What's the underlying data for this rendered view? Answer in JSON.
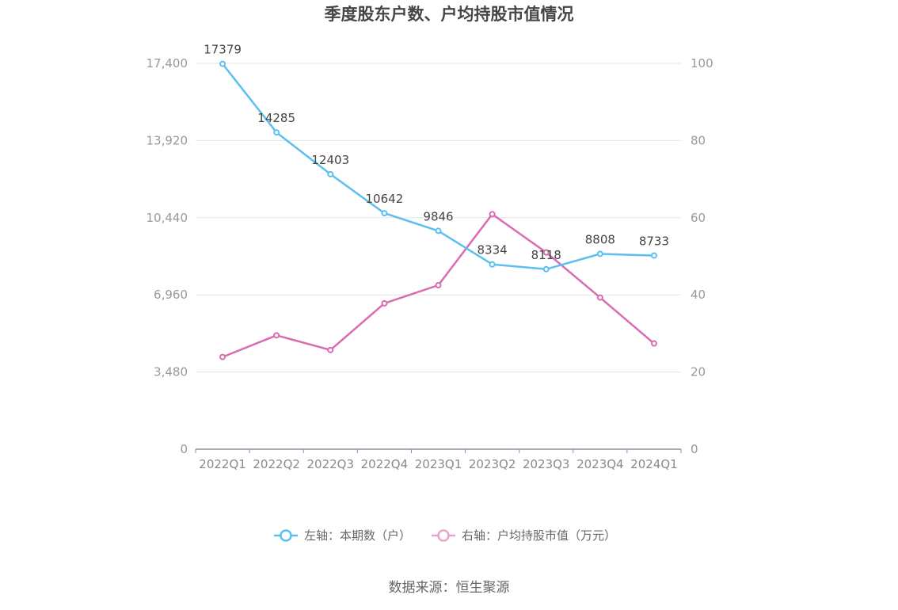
{
  "chart_data": {
    "type": "line",
    "title": "季度股东户数、户均持股市值情况",
    "categories": [
      "2022Q1",
      "2022Q2",
      "2022Q3",
      "2022Q4",
      "2023Q1",
      "2023Q2",
      "2023Q3",
      "2023Q4",
      "2024Q1"
    ],
    "left_axis": {
      "ticks": [
        "0",
        "3,480",
        "6,960",
        "10,440",
        "13,920",
        "17,400"
      ],
      "tick_values": [
        0,
        3480,
        6960,
        10440,
        13920,
        17400
      ],
      "ylim": [
        0,
        17400
      ]
    },
    "right_axis": {
      "ticks": [
        "0",
        "20",
        "40",
        "60",
        "80",
        "100"
      ],
      "tick_values": [
        0,
        20,
        40,
        60,
        80,
        100
      ],
      "ylim": [
        0,
        100
      ]
    },
    "series": [
      {
        "name": "左轴：本期数（户）",
        "axis": "left",
        "color": "#5bc0f0",
        "values": [
          17379,
          14285,
          12403,
          10642,
          9846,
          8334,
          8118,
          8808,
          8733
        ],
        "data_labels": [
          "17379",
          "14285",
          "12403",
          "10642",
          "9846",
          "8334",
          "8118",
          "8808",
          "8733"
        ]
      },
      {
        "name": "右轴：户均持股市值（万元）",
        "axis": "right",
        "color": "#d96bb1",
        "values": [
          23.9,
          29.5,
          25.7,
          37.8,
          42.5,
          60.9,
          51.0,
          39.3,
          27.4
        ]
      }
    ],
    "grid": true,
    "legend_position": "bottom",
    "legend_items": [
      "左轴：本期数（户）",
      "右轴：户均持股市值（万元）"
    ],
    "legend_marker_colors": [
      "#5bc0f0",
      "#e8a3cf"
    ],
    "source": "数据来源：恒生聚源"
  }
}
